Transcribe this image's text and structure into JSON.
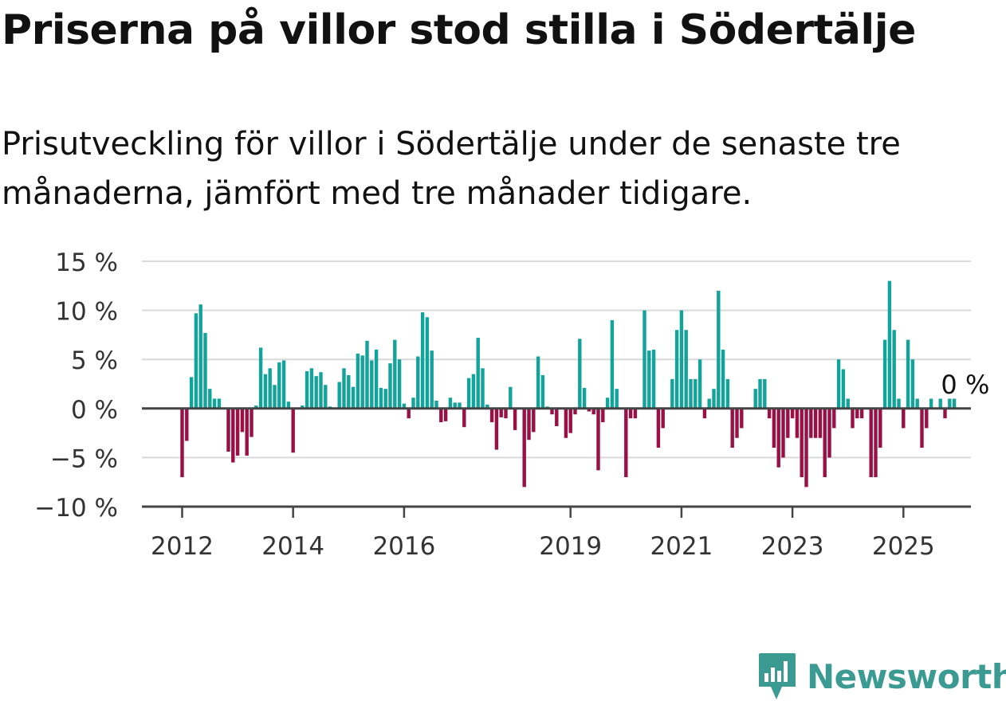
{
  "title": "Priserna på villor stod stilla i Södertälje",
  "subtitle": "Prisutveckling för villor i Södertälje under de senaste tre månaderna, jämfört med tre månader tidigare.",
  "brand": {
    "name": "Newsworthy",
    "icon": "newsworthy-logo-icon"
  },
  "colors": {
    "positive": "#12a39b",
    "negative": "#9a0f44",
    "grid": "#d9d9d9",
    "axis": "#444444"
  },
  "chart_data": {
    "type": "bar",
    "ylim": [
      -10,
      15
    ],
    "y_ticks": [
      -10,
      -5,
      0,
      5,
      10,
      15
    ],
    "y_tick_labels": [
      "−10 %",
      "−5 %",
      "0 %",
      "5 %",
      "10 %",
      "15 %"
    ],
    "x_tick_labels": [
      "2012",
      "2014",
      "2016",
      "2019",
      "2021",
      "2023",
      "2025"
    ],
    "x_tick_positions": [
      "2012-01",
      "2014-01",
      "2016-01",
      "2019-01",
      "2021-01",
      "2023-01",
      "2025-01"
    ],
    "start_month": "2012-01",
    "values": [
      -7,
      -3.3,
      3.2,
      9.7,
      10.6,
      7.7,
      2,
      1,
      1,
      0,
      -4.4,
      -5.5,
      -4.8,
      -2.4,
      -4.8,
      -2.9,
      0.3,
      6.2,
      3.5,
      4.1,
      2.4,
      4.7,
      4.9,
      0.7,
      -4.5,
      0,
      0.3,
      3.8,
      4.1,
      3.3,
      3.7,
      2.4,
      0.2,
      0,
      2.7,
      4.1,
      3.4,
      2.2,
      5.6,
      5.4,
      6.9,
      4.9,
      6,
      2.1,
      2,
      4.6,
      7,
      5,
      0.5,
      -1,
      1.1,
      5.3,
      9.8,
      9.3,
      5.9,
      0.8,
      -1.4,
      -1.3,
      1.1,
      0.6,
      0.6,
      -1.9,
      3.1,
      3.5,
      7.2,
      4.1,
      0.4,
      -1.4,
      -4.2,
      -0.9,
      -1,
      2.2,
      -2.2,
      0,
      -8,
      -3.2,
      -2.4,
      5.3,
      3.4,
      0.2,
      -0.6,
      -1.8,
      0,
      -3,
      -2.5,
      -0.6,
      7.1,
      2.1,
      -0.3,
      -0.6,
      -6.3,
      -1.4,
      1.1,
      9,
      2,
      0,
      -7,
      -1,
      -1,
      0,
      10,
      5.9,
      6,
      -4,
      -2,
      0,
      3,
      8,
      10,
      8,
      3,
      3,
      5,
      -1,
      1,
      2,
      12,
      6,
      3,
      -4,
      -3,
      -2,
      0,
      0,
      2,
      3,
      3,
      -1,
      -4,
      -6,
      -5,
      -3,
      -1,
      -3,
      -7,
      -8,
      -3,
      -3,
      -3,
      -7,
      -5,
      -2,
      5,
      4,
      1,
      -2,
      -1,
      -1,
      0,
      -7,
      -7,
      -4,
      7,
      13,
      8,
      1,
      -2,
      7,
      5,
      1,
      -4,
      -2,
      1,
      0,
      1,
      -1,
      1,
      1,
      0
    ],
    "annotation": "0 %"
  }
}
